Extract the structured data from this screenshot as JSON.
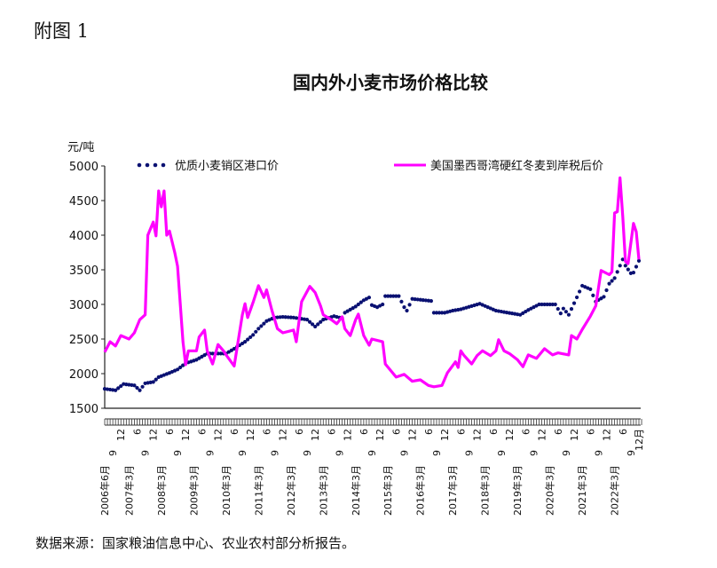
{
  "figure_label": "附图 1",
  "source_note": "数据来源：国家粮油信息中心、农业农村部分析报告。",
  "chart_data": {
    "type": "line",
    "title": "国内外小麦市场价格比较",
    "ylabel": "元/吨",
    "xlabel": "",
    "ylim": [
      1500,
      5000
    ],
    "yticks": [
      "1500",
      "2000",
      "2500",
      "3000",
      "3500",
      "4000",
      "4500",
      "5000"
    ],
    "x_range": [
      "2006-06",
      "2022-12"
    ],
    "grid": false,
    "legend_position": "top",
    "xtick_labels": [
      "2006年6月",
      "9",
      "12",
      "2007年3月",
      "6",
      "9",
      "12",
      "2008年3月",
      "6",
      "9",
      "12",
      "2009年3月",
      "6",
      "9",
      "12",
      "2010年3月",
      "6",
      "9",
      "12",
      "2011年3月",
      "6",
      "9",
      "12",
      "2012年3月",
      "6",
      "9",
      "12",
      "2013年3月",
      "6",
      "9",
      "12",
      "2014年3月",
      "6",
      "9",
      "12",
      "2015年3月",
      "6",
      "9",
      "12",
      "2016年3月",
      "6",
      "9",
      "12",
      "2017年3月",
      "6",
      "9",
      "12",
      "2018年3月",
      "6",
      "9",
      "12",
      "2019年3月",
      "6",
      "9",
      "12",
      "2020年3月",
      "6",
      "9",
      "12",
      "2021年3月",
      "6",
      "9",
      "12",
      "2022年3月",
      "6",
      "9",
      "12月"
    ],
    "series": [
      {
        "name": "优质小麦销区港口价",
        "style": "dotted",
        "color": "#0a1172",
        "points": [
          [
            "2006-06",
            1780
          ],
          [
            "2006-10",
            1760
          ],
          [
            "2007-01",
            1850
          ],
          [
            "2007-05",
            1830
          ],
          [
            "2007-07",
            1760
          ],
          [
            "2007-09",
            1860
          ],
          [
            "2007-12",
            1880
          ],
          [
            "2008-02",
            1950
          ],
          [
            "2008-06",
            2010
          ],
          [
            "2008-09",
            2060
          ],
          [
            "2008-12",
            2150
          ],
          [
            "2009-04",
            2200
          ],
          [
            "2009-08",
            2290
          ],
          [
            "2010-03",
            2290
          ],
          [
            "2010-06",
            2360
          ],
          [
            "2010-10",
            2460
          ],
          [
            "2011-01",
            2560
          ],
          [
            "2011-03",
            2650
          ],
          [
            "2011-06",
            2760
          ],
          [
            "2011-09",
            2810
          ],
          [
            "2011-12",
            2820
          ],
          [
            "2012-04",
            2810
          ],
          [
            "2012-09",
            2780
          ],
          [
            "2012-12",
            2680
          ],
          [
            "2013-03",
            2780
          ],
          [
            "2013-07",
            2830
          ],
          [
            "2013-10",
            2800
          ],
          [
            "2013-11",
            2880
          ],
          [
            "2014-03",
            2970
          ],
          [
            "2014-06",
            3060
          ],
          [
            "2014-08",
            3100
          ],
          [
            "2014-09",
            2990
          ],
          [
            "2014-11",
            2960
          ],
          [
            "2015-01",
            3000
          ],
          [
            "2015-02",
            3120
          ],
          [
            "2015-07",
            3120
          ],
          [
            "2015-09",
            2960
          ],
          [
            "2015-10",
            2910
          ],
          [
            "2015-12",
            3080
          ],
          [
            "2016-07",
            3050
          ],
          [
            "2016-08",
            2880
          ],
          [
            "2016-12",
            2880
          ],
          [
            "2017-03",
            2910
          ],
          [
            "2017-06",
            2930
          ],
          [
            "2018-01",
            3010
          ],
          [
            "2018-07",
            2910
          ],
          [
            "2019-04",
            2850
          ],
          [
            "2019-07",
            2920
          ],
          [
            "2019-11",
            3000
          ],
          [
            "2020-05",
            3000
          ],
          [
            "2020-07",
            2870
          ],
          [
            "2020-08",
            2940
          ],
          [
            "2020-10",
            2850
          ],
          [
            "2021-03",
            3270
          ],
          [
            "2021-06",
            3220
          ],
          [
            "2021-08",
            3040
          ],
          [
            "2021-11",
            3110
          ],
          [
            "2022-01",
            3300
          ],
          [
            "2022-03",
            3380
          ],
          [
            "2022-06",
            3650
          ],
          [
            "2022-07",
            3560
          ],
          [
            "2022-09",
            3450
          ],
          [
            "2022-10",
            3460
          ],
          [
            "2022-12",
            3630
          ]
        ]
      },
      {
        "name": "美国墨西哥湾硬红冬麦到岸税后价",
        "style": "solid",
        "color": "#ff00ff",
        "points": [
          [
            "2006-06",
            2310
          ],
          [
            "2006-08",
            2460
          ],
          [
            "2006-10",
            2400
          ],
          [
            "2006-12",
            2550
          ],
          [
            "2007-03",
            2500
          ],
          [
            "2007-05",
            2590
          ],
          [
            "2007-07",
            2780
          ],
          [
            "2007-09",
            2850
          ],
          [
            "2007-10",
            4000
          ],
          [
            "2007-12",
            4190
          ],
          [
            "2008-01",
            3990
          ],
          [
            "2008-02",
            4640
          ],
          [
            "2008-03",
            4410
          ],
          [
            "2008-04",
            4640
          ],
          [
            "2008-05",
            4000
          ],
          [
            "2008-06",
            4060
          ],
          [
            "2008-08",
            3740
          ],
          [
            "2008-09",
            3550
          ],
          [
            "2008-11",
            2460
          ],
          [
            "2008-12",
            2130
          ],
          [
            "2009-01",
            2330
          ],
          [
            "2009-04",
            2330
          ],
          [
            "2009-05",
            2530
          ],
          [
            "2009-07",
            2630
          ],
          [
            "2009-08",
            2330
          ],
          [
            "2009-10",
            2140
          ],
          [
            "2009-12",
            2420
          ],
          [
            "2010-02",
            2330
          ],
          [
            "2010-03",
            2270
          ],
          [
            "2010-06",
            2110
          ],
          [
            "2010-09",
            2850
          ],
          [
            "2010-10",
            3010
          ],
          [
            "2010-11",
            2810
          ],
          [
            "2011-01",
            3030
          ],
          [
            "2011-03",
            3270
          ],
          [
            "2011-05",
            3100
          ],
          [
            "2011-06",
            3210
          ],
          [
            "2011-08",
            2910
          ],
          [
            "2011-10",
            2650
          ],
          [
            "2011-12",
            2590
          ],
          [
            "2012-04",
            2630
          ],
          [
            "2012-05",
            2460
          ],
          [
            "2012-07",
            3040
          ],
          [
            "2012-10",
            3260
          ],
          [
            "2012-12",
            3170
          ],
          [
            "2013-02",
            2980
          ],
          [
            "2013-03",
            2850
          ],
          [
            "2013-06",
            2780
          ],
          [
            "2013-08",
            2720
          ],
          [
            "2013-10",
            2820
          ],
          [
            "2013-11",
            2650
          ],
          [
            "2014-01",
            2550
          ],
          [
            "2014-03",
            2780
          ],
          [
            "2014-04",
            2860
          ],
          [
            "2014-06",
            2550
          ],
          [
            "2014-08",
            2410
          ],
          [
            "2014-09",
            2500
          ],
          [
            "2015-01",
            2460
          ],
          [
            "2015-02",
            2140
          ],
          [
            "2015-06",
            1950
          ],
          [
            "2015-09",
            1990
          ],
          [
            "2015-12",
            1890
          ],
          [
            "2016-03",
            1910
          ],
          [
            "2016-06",
            1830
          ],
          [
            "2016-08",
            1810
          ],
          [
            "2016-11",
            1830
          ],
          [
            "2017-01",
            2010
          ],
          [
            "2017-04",
            2170
          ],
          [
            "2017-05",
            2090
          ],
          [
            "2017-06",
            2330
          ],
          [
            "2017-07",
            2270
          ],
          [
            "2017-10",
            2140
          ],
          [
            "2017-12",
            2260
          ],
          [
            "2018-02",
            2330
          ],
          [
            "2018-05",
            2260
          ],
          [
            "2018-07",
            2330
          ],
          [
            "2018-08",
            2490
          ],
          [
            "2018-10",
            2330
          ],
          [
            "2018-12",
            2290
          ],
          [
            "2019-03",
            2200
          ],
          [
            "2019-05",
            2100
          ],
          [
            "2019-07",
            2270
          ],
          [
            "2019-10",
            2220
          ],
          [
            "2020-01",
            2360
          ],
          [
            "2020-04",
            2270
          ],
          [
            "2020-06",
            2300
          ],
          [
            "2020-10",
            2270
          ],
          [
            "2020-11",
            2550
          ],
          [
            "2021-01",
            2500
          ],
          [
            "2021-03",
            2640
          ],
          [
            "2021-06",
            2830
          ],
          [
            "2021-08",
            2980
          ],
          [
            "2021-10",
            3490
          ],
          [
            "2022-01",
            3430
          ],
          [
            "2022-02",
            3470
          ],
          [
            "2022-03",
            4320
          ],
          [
            "2022-04",
            4340
          ],
          [
            "2022-05",
            4830
          ],
          [
            "2022-06",
            4270
          ],
          [
            "2022-07",
            3620
          ],
          [
            "2022-08",
            3590
          ],
          [
            "2022-10",
            4170
          ],
          [
            "2022-11",
            4050
          ],
          [
            "2022-12",
            3650
          ]
        ]
      }
    ]
  }
}
